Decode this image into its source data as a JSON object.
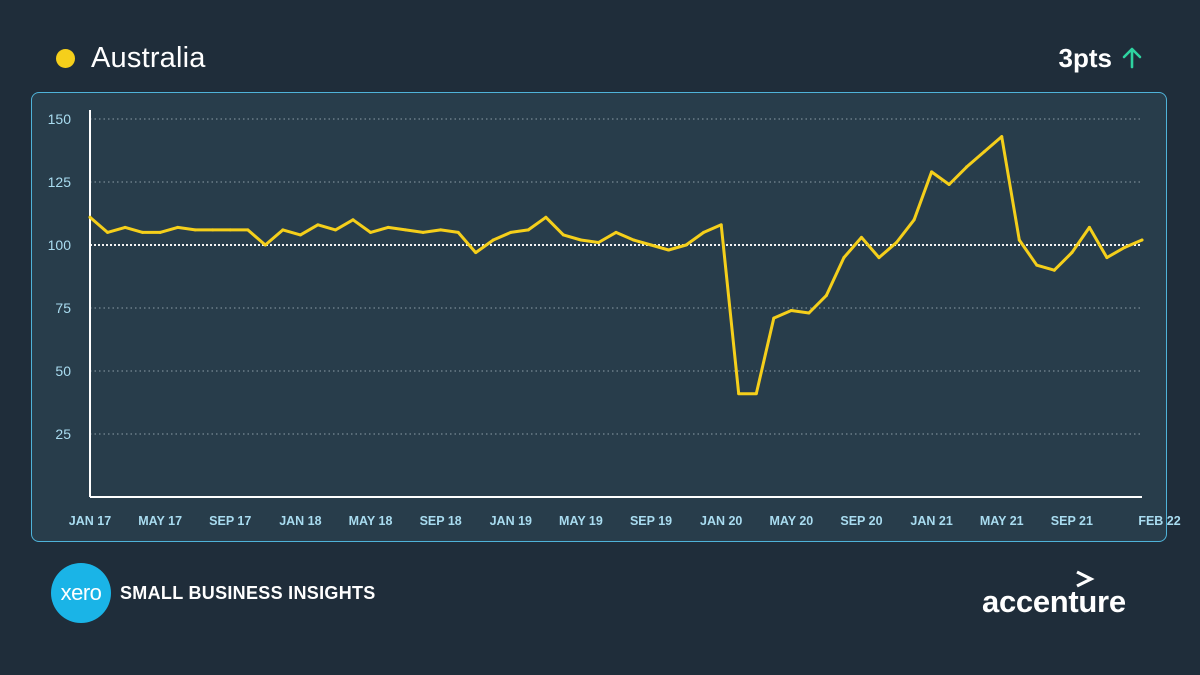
{
  "header": {
    "legend_label": "Australia",
    "change_value": "3pts",
    "change_icon": "arrow-up-icon",
    "legend_color": "#f5cf1b",
    "change_color": "#2ed3a0"
  },
  "footer": {
    "xero_logo_text": "xero",
    "insights_label": "SMALL BUSINESS INSIGHTS",
    "accenture_label": "accenture"
  },
  "colors": {
    "background": "#1f2d3a",
    "panel": "#283d4b",
    "panel_border": "#4fb3d9",
    "line": "#f5cf1b",
    "axis_text": "#a9dcf0"
  },
  "chart_data": {
    "type": "line",
    "title": "",
    "xlabel": "",
    "ylabel": "",
    "ylim": [
      0,
      150
    ],
    "yticks": [
      25,
      50,
      75,
      100,
      125,
      150
    ],
    "grid": true,
    "baseline": 100,
    "x_ticks": [
      {
        "label": "JAN 17",
        "index": 0
      },
      {
        "label": "MAY 17",
        "index": 4
      },
      {
        "label": "SEP 17",
        "index": 8
      },
      {
        "label": "JAN 18",
        "index": 12
      },
      {
        "label": "MAY 18",
        "index": 16
      },
      {
        "label": "SEP 18",
        "index": 20
      },
      {
        "label": "JAN 19",
        "index": 24
      },
      {
        "label": "MAY 19",
        "index": 28
      },
      {
        "label": "SEP 19",
        "index": 32
      },
      {
        "label": "JAN 20",
        "index": 36
      },
      {
        "label": "MAY 20",
        "index": 40
      },
      {
        "label": "SEP 20",
        "index": 44
      },
      {
        "label": "JAN 21",
        "index": 48
      },
      {
        "label": "MAY 21",
        "index": 52
      },
      {
        "label": "SEP 21",
        "index": 56
      },
      {
        "label": "FEB 22",
        "index": 61
      }
    ],
    "series": [
      {
        "name": "Australia",
        "values": [
          111,
          105,
          107,
          105,
          105,
          107,
          106,
          106,
          106,
          106,
          100,
          106,
          104,
          108,
          106,
          110,
          105,
          107,
          106,
          105,
          106,
          105,
          97,
          102,
          105,
          106,
          111,
          104,
          102,
          101,
          105,
          102,
          100,
          98,
          100,
          105,
          108,
          41,
          41,
          71,
          74,
          73,
          80,
          95,
          103,
          95,
          101,
          110,
          129,
          124,
          131,
          137,
          143,
          102,
          92,
          90,
          97,
          107,
          95,
          99,
          102
        ]
      }
    ]
  }
}
